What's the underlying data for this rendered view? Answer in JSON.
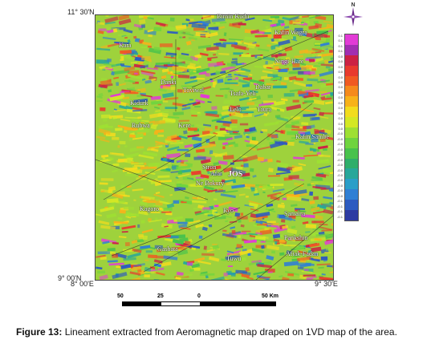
{
  "map": {
    "coords": {
      "top_left": "11° 30'N",
      "bottom_left": "9° 00'N",
      "bottom_left_lon": "8° 00'E",
      "bottom_right_lon": "9° 30'E"
    },
    "places": [
      "Birnin Kudu",
      "Kafin Wagra",
      "Kara",
      "Ningi-Hare",
      "Danki",
      "Toviwal",
      "Dabar",
      "Tsafa-Yeli",
      "Kidurk",
      "Lelo",
      "Taura",
      "Kafin Sambe",
      "Rubwa",
      "Kere",
      "Siron",
      "Afar",
      "JOS",
      "Ne Bokury",
      "Kagoro",
      "Ryo",
      "Samaira",
      "Pankshin",
      "Gashata",
      "Tuwu",
      "Afiak-Fadan"
    ],
    "legend_ticks": [
      "0.1",
      "0.1",
      "0.1",
      "0.1",
      "0.0",
      "0.0",
      "0.0",
      "0.0",
      "0.0",
      "0.0",
      "0.0",
      "0.0",
      "0.0",
      "0.0",
      "0.0",
      "0.0",
      "0.0",
      "0.0",
      "0.0",
      "-0.0",
      "-0.0",
      "-0.0",
      "-0.0",
      "-0.0",
      "-0.0",
      "-0.0",
      "-0.0",
      "-0.0",
      "-0.0",
      "-0.0",
      "-0.0",
      "-0.0",
      "-0.1",
      "-0.1",
      "-0.1",
      "-0.1"
    ],
    "legend_colors": [
      "#e23bd6",
      "#a12fb2",
      "#cc2244",
      "#e83a2e",
      "#f05a22",
      "#f58a1c",
      "#f7b21a",
      "#f2dc1e",
      "#d4e824",
      "#9ee033",
      "#6fd43f",
      "#48c24c",
      "#2fae6a",
      "#27a79a",
      "#2a9ec8",
      "#2f7fd4",
      "#2d5bc0",
      "#2c3aa2"
    ],
    "north_icon": "north-arrow-icon"
  },
  "scale": {
    "labels": [
      "50",
      "25",
      "0",
      "50 Km"
    ]
  },
  "caption": {
    "label": "Figure 13:",
    "text": " Lineament extracted from Aeromagnetic map draped on 1VD map of the area."
  }
}
